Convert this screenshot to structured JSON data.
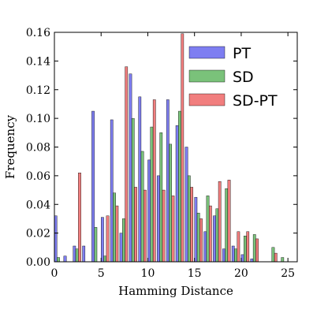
{
  "chart_data": {
    "type": "bar",
    "xlabel": "Hamming Distance",
    "ylabel": "Frequency",
    "xlim": [
      0,
      26
    ],
    "ylim": [
      0,
      0.16
    ],
    "xticks": [
      0,
      5,
      10,
      15,
      20,
      25
    ],
    "yticks": [
      0.0,
      0.02,
      0.04,
      0.06,
      0.08,
      0.1,
      0.12,
      0.14,
      0.16
    ],
    "grid": false,
    "legend_position": "top-right",
    "x": [
      0,
      1,
      2,
      3,
      4,
      5,
      6,
      7,
      8,
      9,
      10,
      11,
      12,
      13,
      14,
      15,
      16,
      17,
      18,
      19,
      20,
      21,
      22,
      23,
      24,
      25
    ],
    "series": [
      {
        "name": "PT",
        "color": "#7070f0",
        "values": [
          0.032,
          0.004,
          0.011,
          0.011,
          0.105,
          0.031,
          0.099,
          0.02,
          0.131,
          0.115,
          0.071,
          0.06,
          0.113,
          0.095,
          0.08,
          0.045,
          0.021,
          0.032,
          0.009,
          0.011,
          0.005,
          0.002,
          0.0,
          0.0,
          0.0,
          0.0
        ]
      },
      {
        "name": "SD",
        "color": "#6cbb6c",
        "values": [
          0.003,
          0.0,
          0.009,
          0.0,
          0.024,
          0.004,
          0.048,
          0.03,
          0.1,
          0.077,
          0.094,
          0.09,
          0.082,
          0.105,
          0.06,
          0.034,
          0.046,
          0.037,
          0.051,
          0.009,
          0.018,
          0.019,
          0.0,
          0.01,
          0.003,
          0.0
        ]
      },
      {
        "name": "SD-PT",
        "color": "#f07070",
        "values": [
          0.0,
          0.0,
          0.062,
          0.0,
          0.0,
          0.032,
          0.039,
          0.136,
          0.052,
          0.05,
          0.113,
          0.05,
          0.046,
          0.159,
          0.052,
          0.03,
          0.039,
          0.056,
          0.057,
          0.021,
          0.021,
          0.016,
          0.0,
          0.006,
          0.0,
          0.0
        ]
      }
    ]
  }
}
